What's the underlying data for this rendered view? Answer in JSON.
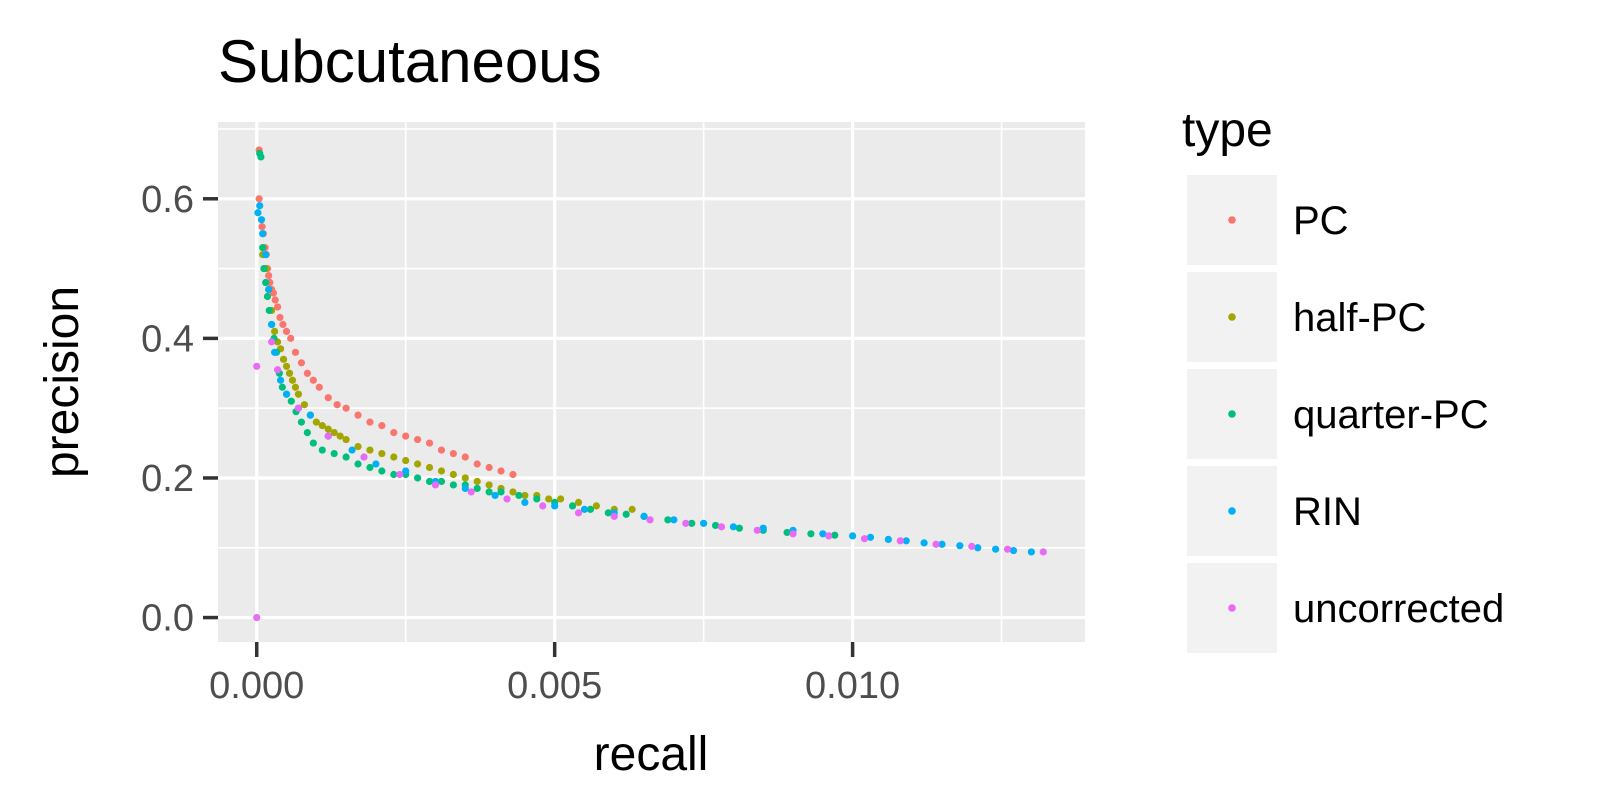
{
  "chart_data": {
    "type": "scatter",
    "title": "Subcutaneous",
    "xlabel": "recall",
    "ylabel": "precision",
    "xlim": [
      -0.00065,
      0.0139
    ],
    "ylim": [
      -0.035,
      0.71
    ],
    "x_ticks": [
      0.0,
      0.005,
      0.01
    ],
    "x_tick_labels": [
      "0.000",
      "0.005",
      "0.010"
    ],
    "y_ticks": [
      0.0,
      0.2,
      0.4,
      0.6
    ],
    "y_tick_labels": [
      "0.0",
      "0.2",
      "0.4",
      "0.6"
    ],
    "grid": true,
    "legend": {
      "title": "type",
      "position": "right"
    },
    "series": [
      {
        "name": "PC",
        "color": "#F8766D",
        "x": [
          4e-05,
          4e-05,
          9e-05,
          0.00011,
          0.00014,
          0.00016,
          0.00018,
          0.0002,
          0.00022,
          0.00025,
          0.00028,
          0.00031,
          0.00035,
          0.00039,
          0.00044,
          0.0005,
          0.00057,
          0.00065,
          0.00075,
          0.00085,
          0.00095,
          0.00105,
          0.0012,
          0.00135,
          0.0015,
          0.0017,
          0.0019,
          0.0021,
          0.0023,
          0.0025,
          0.0027,
          0.0029,
          0.0031,
          0.0033,
          0.0035,
          0.0037,
          0.0039,
          0.0041,
          0.0043
        ],
        "y": [
          0.67,
          0.6,
          0.56,
          0.55,
          0.53,
          0.52,
          0.5,
          0.49,
          0.48,
          0.47,
          0.465,
          0.455,
          0.445,
          0.43,
          0.42,
          0.41,
          0.4,
          0.38,
          0.365,
          0.35,
          0.34,
          0.33,
          0.315,
          0.305,
          0.3,
          0.29,
          0.28,
          0.275,
          0.265,
          0.26,
          0.255,
          0.25,
          0.24,
          0.235,
          0.23,
          0.22,
          0.215,
          0.21,
          0.205
        ]
      },
      {
        "name": "half-PC",
        "color": "#A3A500",
        "x": [
          0.0001,
          0.00015,
          0.0002,
          0.00025,
          0.0003,
          0.00035,
          0.0004,
          0.00045,
          0.0005,
          0.00055,
          0.0006,
          0.00065,
          0.0007,
          0.0008,
          0.0009,
          0.001,
          0.0011,
          0.0012,
          0.0013,
          0.0014,
          0.0015,
          0.0017,
          0.0019,
          0.0021,
          0.0023,
          0.0025,
          0.0027,
          0.0029,
          0.0031,
          0.0033,
          0.0035,
          0.0037,
          0.0039,
          0.0041,
          0.0043,
          0.0045,
          0.0047,
          0.0049,
          0.0051,
          0.0054,
          0.0057,
          0.006,
          0.0063
        ],
        "y": [
          0.52,
          0.5,
          0.47,
          0.44,
          0.41,
          0.395,
          0.385,
          0.37,
          0.36,
          0.35,
          0.34,
          0.33,
          0.32,
          0.305,
          0.29,
          0.28,
          0.275,
          0.27,
          0.265,
          0.26,
          0.255,
          0.245,
          0.24,
          0.235,
          0.23,
          0.225,
          0.22,
          0.215,
          0.21,
          0.205,
          0.2,
          0.195,
          0.19,
          0.185,
          0.18,
          0.175,
          0.175,
          0.17,
          0.17,
          0.165,
          0.16,
          0.155,
          0.155
        ]
      },
      {
        "name": "quarter-PC",
        "color": "#00BF7D",
        "x": [
          5e-05,
          7e-05,
          0.0001,
          0.00012,
          0.00015,
          0.00018,
          0.00021,
          0.00025,
          0.00029,
          0.00033,
          0.00038,
          0.00043,
          0.0005,
          0.00058,
          0.00066,
          0.00075,
          0.00085,
          0.00095,
          0.0011,
          0.0013,
          0.0015,
          0.0017,
          0.0019,
          0.0021,
          0.0023,
          0.0025,
          0.0027,
          0.0029,
          0.0031,
          0.0033,
          0.0035,
          0.0037,
          0.0039,
          0.0041,
          0.0044,
          0.0047,
          0.005,
          0.0053,
          0.0056,
          0.0059,
          0.0062,
          0.0065,
          0.0069,
          0.0073,
          0.0077,
          0.0081,
          0.0085,
          0.0089,
          0.0093,
          0.0097
        ],
        "y": [
          0.665,
          0.66,
          0.53,
          0.5,
          0.48,
          0.46,
          0.44,
          0.42,
          0.4,
          0.38,
          0.35,
          0.33,
          0.32,
          0.31,
          0.295,
          0.28,
          0.265,
          0.25,
          0.24,
          0.235,
          0.23,
          0.22,
          0.215,
          0.21,
          0.205,
          0.205,
          0.2,
          0.195,
          0.195,
          0.19,
          0.19,
          0.185,
          0.18,
          0.18,
          0.175,
          0.17,
          0.165,
          0.16,
          0.155,
          0.15,
          0.148,
          0.145,
          0.14,
          0.135,
          0.132,
          0.128,
          0.125,
          0.122,
          0.12,
          0.118
        ]
      },
      {
        "name": "RIN",
        "color": "#00B0F6",
        "x": [
          2e-05,
          5e-05,
          8e-05,
          0.0001,
          0.00015,
          0.0002,
          0.00025,
          0.0003,
          0.0004,
          0.0005,
          0.0007,
          0.0009,
          0.0012,
          0.0016,
          0.002,
          0.0025,
          0.003,
          0.0035,
          0.004,
          0.0045,
          0.005,
          0.0055,
          0.006,
          0.0065,
          0.007,
          0.0075,
          0.008,
          0.0085,
          0.009,
          0.0095,
          0.01,
          0.0103,
          0.0106,
          0.0109,
          0.0112,
          0.0115,
          0.0118,
          0.0121,
          0.0124,
          0.0127,
          0.013
        ],
        "y": [
          0.58,
          0.59,
          0.57,
          0.55,
          0.52,
          0.47,
          0.42,
          0.38,
          0.34,
          0.32,
          0.3,
          0.29,
          0.26,
          0.24,
          0.22,
          0.21,
          0.195,
          0.185,
          0.175,
          0.165,
          0.16,
          0.155,
          0.15,
          0.145,
          0.14,
          0.135,
          0.13,
          0.128,
          0.125,
          0.12,
          0.117,
          0.115,
          0.112,
          0.11,
          0.107,
          0.105,
          0.103,
          0.1,
          0.098,
          0.096,
          0.094
        ]
      },
      {
        "name": "uncorrected",
        "color": "#E76BF3",
        "x": [
          0.0,
          0.0,
          0.00025,
          0.00035,
          0.0007,
          0.0012,
          0.0018,
          0.0024,
          0.003,
          0.0036,
          0.0042,
          0.0048,
          0.0054,
          0.006,
          0.0066,
          0.0072,
          0.0078,
          0.0084,
          0.009,
          0.0096,
          0.0102,
          0.0108,
          0.0114,
          0.012,
          0.0126,
          0.0132
        ],
        "y": [
          0.0,
          0.36,
          0.395,
          0.355,
          0.3,
          0.26,
          0.23,
          0.205,
          0.19,
          0.18,
          0.17,
          0.16,
          0.15,
          0.145,
          0.14,
          0.135,
          0.13,
          0.125,
          0.12,
          0.117,
          0.113,
          0.11,
          0.105,
          0.102,
          0.098,
          0.094
        ]
      }
    ]
  }
}
